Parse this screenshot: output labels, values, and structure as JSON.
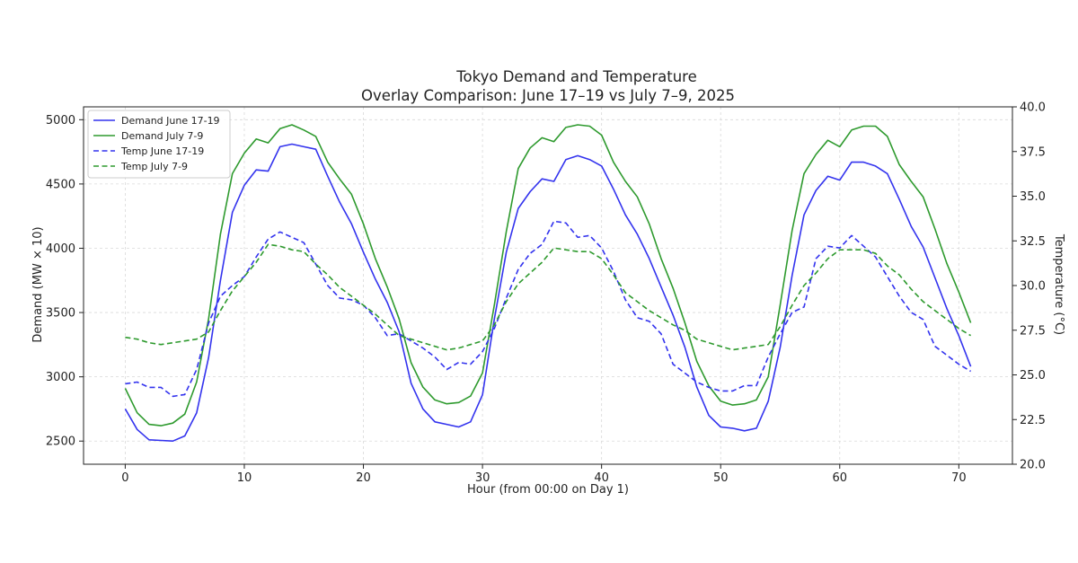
{
  "chart_data": {
    "type": "line",
    "title": "Tokyo Demand and Temperature",
    "subtitle": "Overlay Comparison: June 17–19 vs July 7–9, 2025",
    "xlabel": "Hour (from 00:00 on Day 1)",
    "ylabel": "Demand (MW × 10)",
    "y2label": "Temperature (°C)",
    "xlim": [
      -3.5,
      74.5
    ],
    "ylim": [
      2320,
      5100
    ],
    "y2lim": [
      20.0,
      40.0
    ],
    "x_ticks": [
      "0",
      "10",
      "20",
      "30",
      "40",
      "50",
      "60",
      "70"
    ],
    "y_ticks": [
      "2500",
      "3000",
      "3500",
      "4000",
      "4500",
      "5000"
    ],
    "y2_ticks": [
      "20.0",
      "22.5",
      "25.0",
      "27.5",
      "30.0",
      "32.5",
      "35.0",
      "37.5",
      "40.0"
    ],
    "grid": true,
    "legend_position": "top-left",
    "x": [
      0,
      1,
      2,
      3,
      4,
      5,
      6,
      7,
      8,
      9,
      10,
      11,
      12,
      13,
      14,
      15,
      16,
      17,
      18,
      19,
      20,
      21,
      22,
      23,
      24,
      25,
      26,
      27,
      28,
      29,
      30,
      31,
      32,
      33,
      34,
      35,
      36,
      37,
      38,
      39,
      40,
      41,
      42,
      43,
      44,
      45,
      46,
      47,
      48,
      49,
      50,
      51,
      52,
      53,
      54,
      55,
      56,
      57,
      58,
      59,
      60,
      61,
      62,
      63,
      64,
      65,
      66,
      67,
      68,
      69,
      70,
      71
    ],
    "series": [
      {
        "name": "Demand June 17-19",
        "axis": "left",
        "color": "#3333ee",
        "dash": "solid",
        "values": [
          2750,
          2590,
          2510,
          2505,
          2500,
          2540,
          2720,
          3150,
          3750,
          4280,
          4490,
          4610,
          4600,
          4790,
          4810,
          4790,
          4770,
          4560,
          4360,
          4190,
          3970,
          3760,
          3580,
          3350,
          2950,
          2750,
          2650,
          2630,
          2610,
          2650,
          2860,
          3450,
          3970,
          4310,
          4440,
          4540,
          4520,
          4690,
          4720,
          4690,
          4640,
          4460,
          4260,
          4110,
          3920,
          3700,
          3480,
          3230,
          2920,
          2700,
          2610,
          2600,
          2580,
          2600,
          2810,
          3230,
          3790,
          4260,
          4450,
          4560,
          4530,
          4670,
          4670,
          4640,
          4580,
          4380,
          4170,
          4010,
          3770,
          3530,
          3320,
          3080
        ]
      },
      {
        "name": "Demand July 7-9",
        "axis": "left",
        "color": "#2e9a2e",
        "dash": "solid",
        "values": [
          2910,
          2720,
          2630,
          2620,
          2640,
          2710,
          2960,
          3450,
          4110,
          4580,
          4740,
          4850,
          4820,
          4930,
          4960,
          4920,
          4870,
          4670,
          4540,
          4420,
          4190,
          3920,
          3700,
          3450,
          3110,
          2920,
          2820,
          2790,
          2800,
          2850,
          3030,
          3560,
          4130,
          4620,
          4780,
          4860,
          4830,
          4940,
          4960,
          4950,
          4880,
          4670,
          4520,
          4400,
          4190,
          3920,
          3690,
          3420,
          3120,
          2930,
          2810,
          2780,
          2790,
          2820,
          3000,
          3560,
          4140,
          4580,
          4730,
          4840,
          4790,
          4920,
          4950,
          4950,
          4870,
          4650,
          4520,
          4400,
          4150,
          3880,
          3660,
          3420
        ]
      },
      {
        "name": "Temp June 17-19",
        "axis": "right",
        "color": "#3333ee",
        "dash": "dashed",
        "values": [
          24.5,
          24.6,
          24.3,
          24.3,
          23.8,
          23.9,
          25.3,
          27.9,
          29.4,
          30.0,
          30.5,
          31.6,
          32.6,
          33.0,
          32.7,
          32.4,
          31.2,
          30.0,
          29.3,
          29.2,
          28.9,
          28.2,
          27.2,
          27.3,
          26.9,
          26.5,
          26.0,
          25.3,
          25.7,
          25.6,
          26.3,
          27.6,
          29.3,
          30.9,
          31.8,
          32.3,
          33.6,
          33.5,
          32.7,
          32.8,
          32.1,
          30.8,
          29.2,
          28.2,
          28.0,
          27.3,
          25.6,
          25.1,
          24.6,
          24.3,
          24.1,
          24.1,
          24.4,
          24.4,
          26.0,
          27.3,
          28.5,
          28.8,
          31.5,
          32.2,
          32.1,
          32.8,
          32.2,
          31.6,
          30.5,
          29.4,
          28.5,
          28.1,
          26.6,
          26.1,
          25.6,
          25.2
        ]
      },
      {
        "name": "Temp July 7-9",
        "axis": "right",
        "color": "#2e9a2e",
        "dash": "dashed",
        "values": [
          27.1,
          27.0,
          26.8,
          26.7,
          26.8,
          26.9,
          27.0,
          27.4,
          28.6,
          29.7,
          30.5,
          31.3,
          32.3,
          32.2,
          32.0,
          31.9,
          31.2,
          30.6,
          29.9,
          29.4,
          28.9,
          28.4,
          27.8,
          27.2,
          27.0,
          26.8,
          26.6,
          26.4,
          26.5,
          26.7,
          26.9,
          27.8,
          29.1,
          30.1,
          30.7,
          31.3,
          32.1,
          32.0,
          31.9,
          31.9,
          31.5,
          30.6,
          29.6,
          29.1,
          28.6,
          28.2,
          27.8,
          27.5,
          27.0,
          26.8,
          26.6,
          26.4,
          26.5,
          26.6,
          26.7,
          27.7,
          28.9,
          30.0,
          30.7,
          31.5,
          32.0,
          32.0,
          32.0,
          31.8,
          31.1,
          30.6,
          29.8,
          29.1,
          28.6,
          28.1,
          27.6,
          27.2
        ]
      }
    ]
  }
}
